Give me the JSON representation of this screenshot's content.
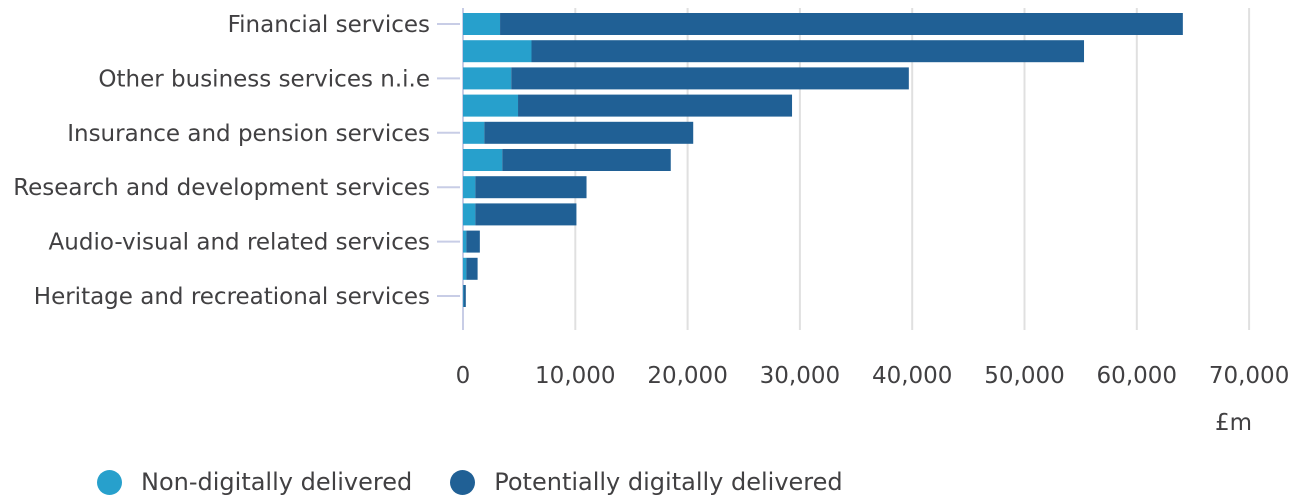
{
  "chart_data": {
    "type": "bar",
    "orientation": "horizontal",
    "stacked": true,
    "title": "",
    "xlabel": "£m",
    "ylabel": "",
    "xlim": [
      0,
      70000
    ],
    "x_ticks": [
      0,
      10000,
      20000,
      30000,
      40000,
      50000,
      60000,
      70000
    ],
    "x_tick_labels": [
      "0",
      "10,000",
      "20,000",
      "30,000",
      "40,000",
      "50,000",
      "60,000",
      "70,000"
    ],
    "grid": true,
    "legend_position": "bottom",
    "categories": [
      "Financial services",
      "",
      "Other business services n.i.e",
      "",
      "Insurance and pension services",
      "",
      "Research and development services",
      "",
      "Audio-visual and related services",
      "",
      "Heritage and recreational services"
    ],
    "series": [
      {
        "name": "Non-digitally delivered",
        "color": "#27a0cc",
        "values": [
          3300,
          6100,
          4300,
          4900,
          1900,
          3500,
          1100,
          1100,
          300,
          300,
          50
        ]
      },
      {
        "name": "Potentially digitally delivered",
        "color": "#206095",
        "values": [
          60800,
          49200,
          35400,
          24400,
          18600,
          15000,
          9900,
          9000,
          1200,
          1000,
          200
        ]
      }
    ]
  }
}
